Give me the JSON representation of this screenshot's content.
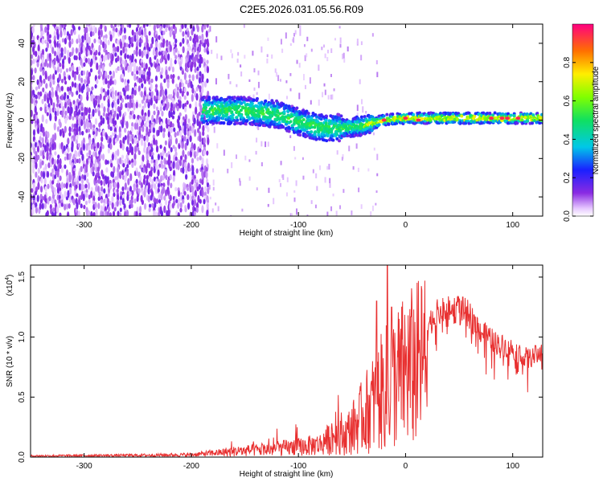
{
  "title": "C2E5.2026.031.05.56.R09",
  "chart_data": [
    {
      "type": "heatmap",
      "name": "spectrogram",
      "xlabel": "Height of straight line (km)",
      "ylabel": "Frequency (Hz)",
      "xlim": [
        -350,
        128
      ],
      "ylim": [
        -50,
        50
      ],
      "xticks": [
        -300,
        -200,
        -100,
        0,
        100
      ],
      "yticks": [
        -40,
        -20,
        0,
        20,
        40
      ],
      "xtick_labels": [
        "-300",
        "-200",
        "-100",
        "0",
        "100"
      ],
      "ytick_labels": [
        "-40",
        "-20",
        "0",
        "20",
        "40"
      ],
      "signal_center_hz": [
        {
          "x": -180,
          "y": 5
        },
        {
          "x": -150,
          "y": 5
        },
        {
          "x": -120,
          "y": 3
        },
        {
          "x": -100,
          "y": -1
        },
        {
          "x": -80,
          "y": -4
        },
        {
          "x": -60,
          "y": -4
        },
        {
          "x": -40,
          "y": -3
        },
        {
          "x": -20,
          "y": 0
        },
        {
          "x": 0,
          "y": 1
        },
        {
          "x": 40,
          "y": 1
        },
        {
          "x": 80,
          "y": 1
        },
        {
          "x": 128,
          "y": 1
        }
      ],
      "noise_region_km": [
        -350,
        -185
      ],
      "colorbar": {
        "label": "Normalized spectral amplitude",
        "range": [
          0,
          1
        ],
        "ticks": [
          0.0,
          0.2,
          0.4,
          0.6,
          0.8
        ],
        "tick_labels": [
          "0.0",
          "0.2",
          "0.4",
          "0.6",
          "0.8"
        ]
      }
    },
    {
      "type": "line",
      "name": "snr",
      "xlabel": "Height of straight line (km)",
      "ylabel": "SNR (10 * v/v)",
      "yscale_label": "(x10",
      "yscale_exp": "4",
      "yscale_close": ")",
      "xlim": [
        -350,
        128
      ],
      "ylim": [
        0,
        1.6
      ],
      "xticks": [
        -300,
        -200,
        -100,
        0,
        100
      ],
      "yticks": [
        0.0,
        0.5,
        1.0,
        1.5
      ],
      "xtick_labels": [
        "-300",
        "-200",
        "-100",
        "0",
        "100"
      ],
      "ytick_labels": [
        "0.0",
        "0.5",
        "1.0",
        "1.5"
      ],
      "color": "#e83030",
      "envelope": [
        {
          "x": -350,
          "y": 0.01
        },
        {
          "x": -250,
          "y": 0.015
        },
        {
          "x": -200,
          "y": 0.02
        },
        {
          "x": -170,
          "y": 0.04
        },
        {
          "x": -130,
          "y": 0.06
        },
        {
          "x": -100,
          "y": 0.08
        },
        {
          "x": -80,
          "y": 0.1
        },
        {
          "x": -60,
          "y": 0.2
        },
        {
          "x": -45,
          "y": 0.38
        },
        {
          "x": -30,
          "y": 0.6
        },
        {
          "x": -20,
          "y": 0.75
        },
        {
          "x": -10,
          "y": 0.85
        },
        {
          "x": 0,
          "y": 0.95
        },
        {
          "x": 15,
          "y": 1.05
        },
        {
          "x": 30,
          "y": 1.2
        },
        {
          "x": 50,
          "y": 1.24
        },
        {
          "x": 60,
          "y": 1.18
        },
        {
          "x": 70,
          "y": 1.05
        },
        {
          "x": 85,
          "y": 0.95
        },
        {
          "x": 100,
          "y": 0.9
        },
        {
          "x": 115,
          "y": 0.82
        },
        {
          "x": 128,
          "y": 0.88
        }
      ],
      "spikes": [
        {
          "x": -17,
          "y": 1.6
        },
        {
          "x": -27,
          "y": 1.3
        },
        {
          "x": -13,
          "y": 1.25
        },
        {
          "x": 10,
          "y": 0.42
        },
        {
          "x": 5,
          "y": 1.17
        }
      ]
    }
  ]
}
